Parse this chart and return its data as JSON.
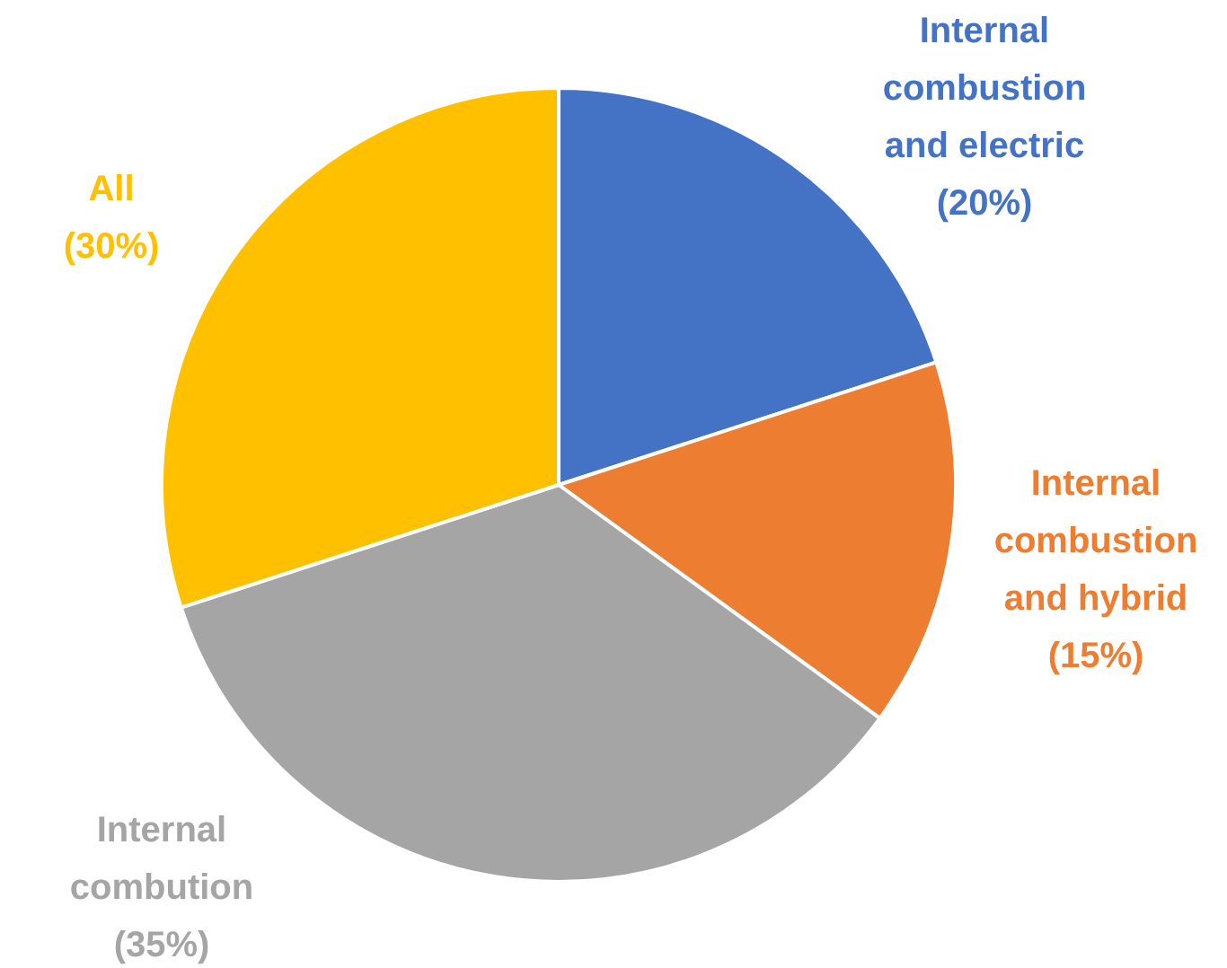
{
  "chart_data": {
    "type": "pie",
    "categories": [
      "Internal combustion and electric",
      "Internal combustion and hybrid",
      "Internal combution",
      "All"
    ],
    "values": [
      20,
      15,
      35,
      30
    ],
    "colors": [
      "#4472c4",
      "#ed7d31",
      "#a5a5a5",
      "#ffc000"
    ],
    "value_labels": [
      "(20%)",
      "(15%)",
      "(35%)",
      "(30%)"
    ],
    "legend": false
  }
}
